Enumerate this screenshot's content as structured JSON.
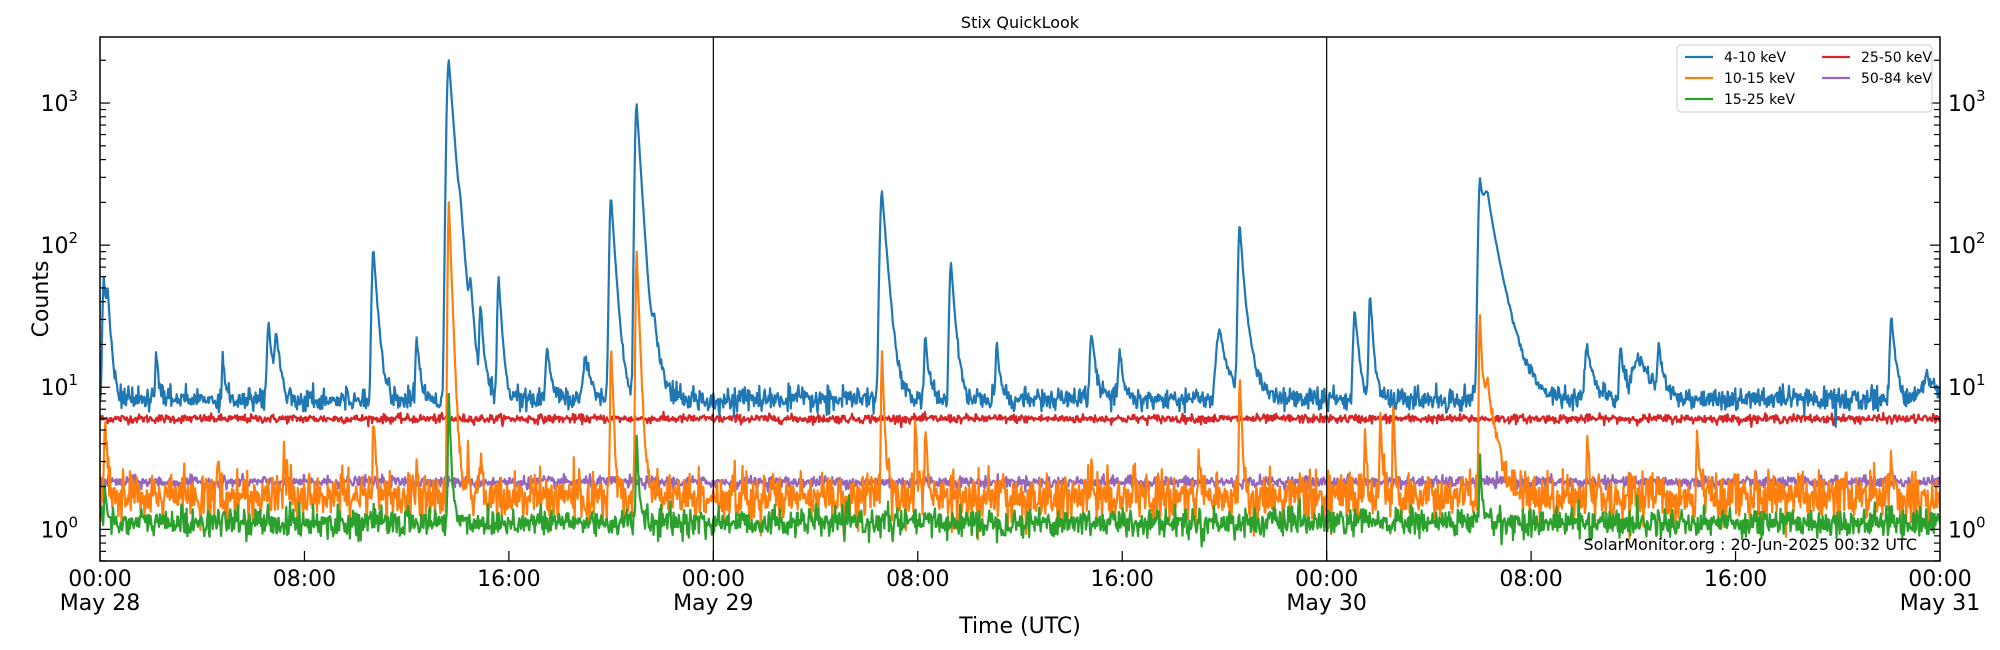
{
  "chart_data": {
    "type": "line",
    "title": "Stix QuickLook",
    "xlabel": "Time (UTC)",
    "ylabel": "Counts",
    "yscale": "log",
    "ylim": [
      0.6,
      2900
    ],
    "xlim_hours": [
      0,
      72
    ],
    "grid": false,
    "legend_position": "upper right",
    "x_ticks": [
      {
        "hour": 0,
        "label": "00:00",
        "sublabel": "May 28"
      },
      {
        "hour": 8,
        "label": "08:00",
        "sublabel": ""
      },
      {
        "hour": 16,
        "label": "16:00",
        "sublabel": ""
      },
      {
        "hour": 24,
        "label": "00:00",
        "sublabel": "May 29"
      },
      {
        "hour": 32,
        "label": "08:00",
        "sublabel": ""
      },
      {
        "hour": 40,
        "label": "16:00",
        "sublabel": ""
      },
      {
        "hour": 48,
        "label": "00:00",
        "sublabel": "May 30"
      },
      {
        "hour": 56,
        "label": "08:00",
        "sublabel": ""
      },
      {
        "hour": 64,
        "label": "16:00",
        "sublabel": ""
      },
      {
        "hour": 72,
        "label": "00:00",
        "sublabel": "May 31"
      }
    ],
    "y_ticks": [
      {
        "value": 1,
        "base": "10",
        "exp": "0"
      },
      {
        "value": 10,
        "base": "10",
        "exp": "1"
      },
      {
        "value": 100,
        "base": "10",
        "exp": "2"
      },
      {
        "value": 1000,
        "base": "10",
        "exp": "3"
      }
    ],
    "day_dividers_hours": [
      24,
      48
    ],
    "annotation": "SolarMonitor.org : 20-Jun-2025 00:32 UTC",
    "series": [
      {
        "name": "4-10 keV",
        "color": "#1f77b4",
        "baseline": 8.2,
        "noise": 0.04,
        "peaks": [
          [
            0.15,
            60,
            0.08
          ],
          [
            0.3,
            35,
            0.08
          ],
          [
            2.2,
            18,
            0.06
          ],
          [
            4.8,
            17,
            0.06
          ],
          [
            6.6,
            28,
            0.1
          ],
          [
            6.9,
            22,
            0.1
          ],
          [
            10.7,
            95,
            0.1
          ],
          [
            12.4,
            22,
            0.08
          ],
          [
            13.65,
            2000,
            0.12
          ],
          [
            14.1,
            60,
            0.1
          ],
          [
            14.5,
            38,
            0.08
          ],
          [
            14.9,
            35,
            0.08
          ],
          [
            15.6,
            60,
            0.08
          ],
          [
            17.5,
            18,
            0.1
          ],
          [
            19.0,
            16,
            0.15
          ],
          [
            20.0,
            220,
            0.1
          ],
          [
            21.0,
            980,
            0.1
          ],
          [
            21.7,
            22,
            0.15
          ],
          [
            30.6,
            240,
            0.12
          ],
          [
            32.3,
            23,
            0.08
          ],
          [
            33.3,
            75,
            0.1
          ],
          [
            35.1,
            20,
            0.08
          ],
          [
            38.8,
            25,
            0.1
          ],
          [
            39.9,
            18,
            0.1
          ],
          [
            43.8,
            25,
            0.2
          ],
          [
            44.6,
            140,
            0.1
          ],
          [
            45.0,
            14,
            0.3
          ],
          [
            49.1,
            35,
            0.1
          ],
          [
            49.7,
            45,
            0.08
          ],
          [
            54.0,
            260,
            0.1
          ],
          [
            54.3,
            200,
            0.3
          ],
          [
            58.2,
            19,
            0.15
          ],
          [
            59.5,
            20,
            0.08
          ],
          [
            60.2,
            16,
            0.4
          ],
          [
            61.0,
            18,
            0.08
          ],
          [
            70.1,
            32,
            0.1
          ],
          [
            71.5,
            12,
            0.3
          ]
        ]
      },
      {
        "name": "10-15 keV",
        "color": "#ff7f0e",
        "baseline": 1.75,
        "noise": 0.08,
        "peaks": [
          [
            0.2,
            6,
            0.05
          ],
          [
            3.3,
            3,
            0.04
          ],
          [
            4.6,
            3.3,
            0.04
          ],
          [
            7.2,
            4,
            0.04
          ],
          [
            10.7,
            6.5,
            0.05
          ],
          [
            12.4,
            2.8,
            0.05
          ],
          [
            13.65,
            200,
            0.06
          ],
          [
            14.4,
            4,
            0.04
          ],
          [
            14.9,
            3.5,
            0.04
          ],
          [
            20.0,
            20,
            0.05
          ],
          [
            21.0,
            90,
            0.06
          ],
          [
            30.6,
            18,
            0.05
          ],
          [
            31.9,
            6,
            0.04
          ],
          [
            32.3,
            6,
            0.04
          ],
          [
            38.8,
            3,
            0.04
          ],
          [
            43.0,
            3.5,
            0.04
          ],
          [
            44.6,
            12,
            0.05
          ],
          [
            49.5,
            5.5,
            0.04
          ],
          [
            50.1,
            7,
            0.04
          ],
          [
            50.6,
            8,
            0.04
          ],
          [
            54.0,
            32,
            0.06
          ],
          [
            54.3,
            10,
            0.2
          ],
          [
            58.2,
            5,
            0.04
          ],
          [
            62.5,
            5.5,
            0.04
          ],
          [
            70.1,
            3.5,
            0.04
          ]
        ]
      },
      {
        "name": "15-25 keV",
        "color": "#2ca02c",
        "baseline": 1.12,
        "noise": 0.05,
        "peaks": [
          [
            0.2,
            2.0,
            0.05
          ],
          [
            13.65,
            9,
            0.05
          ],
          [
            21.0,
            4.5,
            0.05
          ],
          [
            54.0,
            3.2,
            0.05
          ]
        ]
      },
      {
        "name": "25-50 keV",
        "color": "#d62728",
        "baseline": 6.0,
        "noise": 0.015,
        "peaks": []
      },
      {
        "name": "50-84 keV",
        "color": "#9467bd",
        "baseline": 2.15,
        "noise": 0.02,
        "peaks": []
      }
    ]
  }
}
